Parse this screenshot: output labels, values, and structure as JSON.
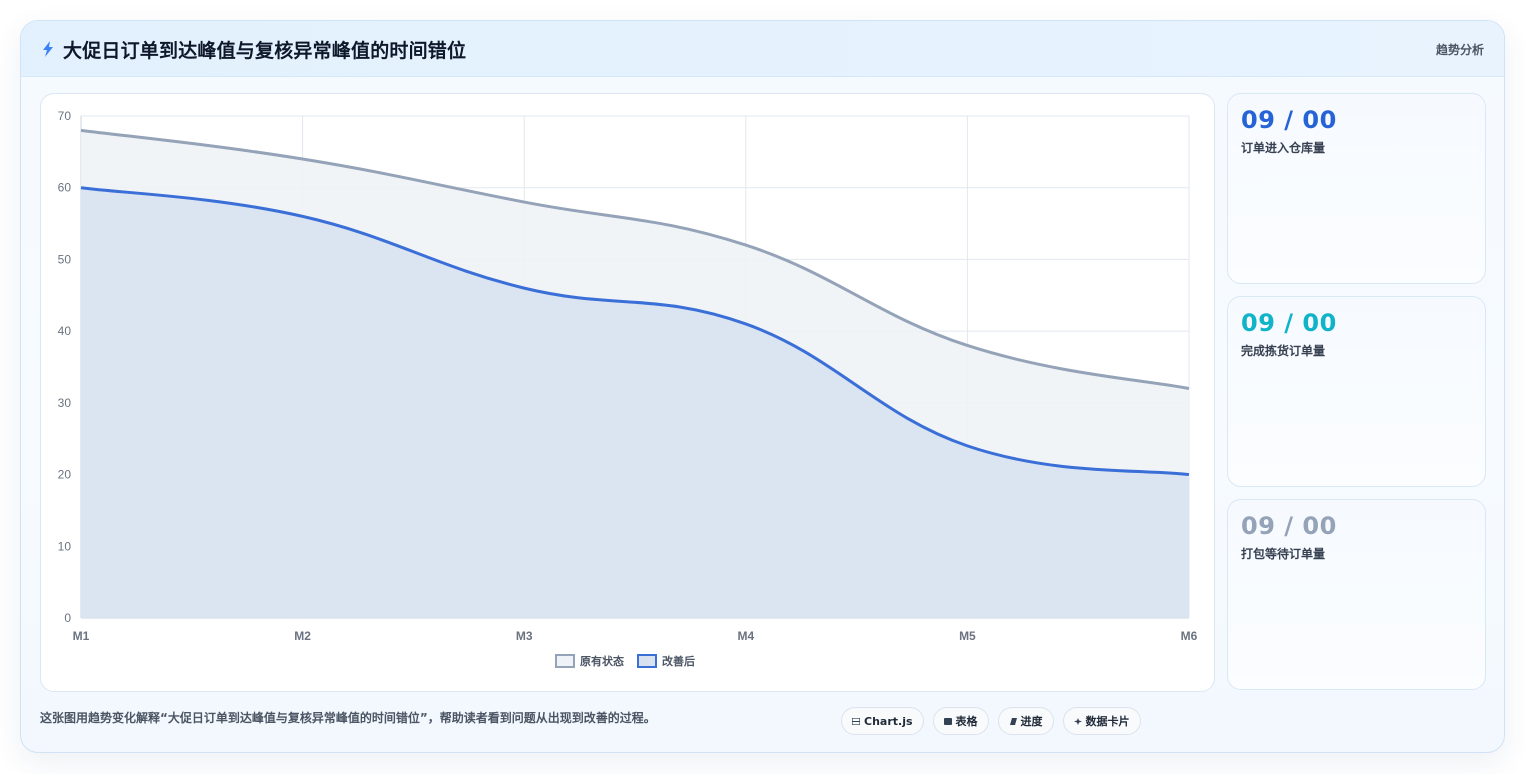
{
  "header": {
    "title": "大促日订单到达峰值与复核异常峰值的时间错位",
    "tag": "趋势分析"
  },
  "kpis": [
    {
      "value": "09 / 00",
      "label": "订单进入仓库量",
      "color": "#2563d6"
    },
    {
      "value": "09 / 00",
      "label": "完成拣货订单量",
      "color": "#10b3c8"
    },
    {
      "value": "09 / 00",
      "label": "打包等待订单量",
      "color": "#94a3b8"
    }
  ],
  "caption": "这张图用趋势变化解释“大促日订单到达峰值与复核异常峰值的时间错位”，帮助读者看到问题从出现到改善的过程。",
  "chips": [
    {
      "label": "Chart.js",
      "icon": "chart-icon"
    },
    {
      "label": "表格",
      "icon": "table-icon"
    },
    {
      "label": "进度",
      "icon": "progress-icon"
    },
    {
      "label": "数据卡片",
      "icon": "sparkle-icon"
    }
  ],
  "chart_data": {
    "type": "area",
    "categories": [
      "M1",
      "M2",
      "M3",
      "M4",
      "M5",
      "M6"
    ],
    "series": [
      {
        "name": "原有状态",
        "values": [
          68,
          64,
          58,
          52,
          38,
          32
        ],
        "color": "#94a3b8",
        "fill": "#eff2f6"
      },
      {
        "name": "改善后",
        "values": [
          60,
          56,
          46,
          41,
          24,
          20
        ],
        "color": "#3b6fd8",
        "fill": "#d7e1f0"
      }
    ],
    "ylim": [
      0,
      70
    ],
    "yticks": [
      0,
      10,
      20,
      30,
      40,
      50,
      60,
      70
    ],
    "grid": true,
    "legend": "bottom-center"
  }
}
